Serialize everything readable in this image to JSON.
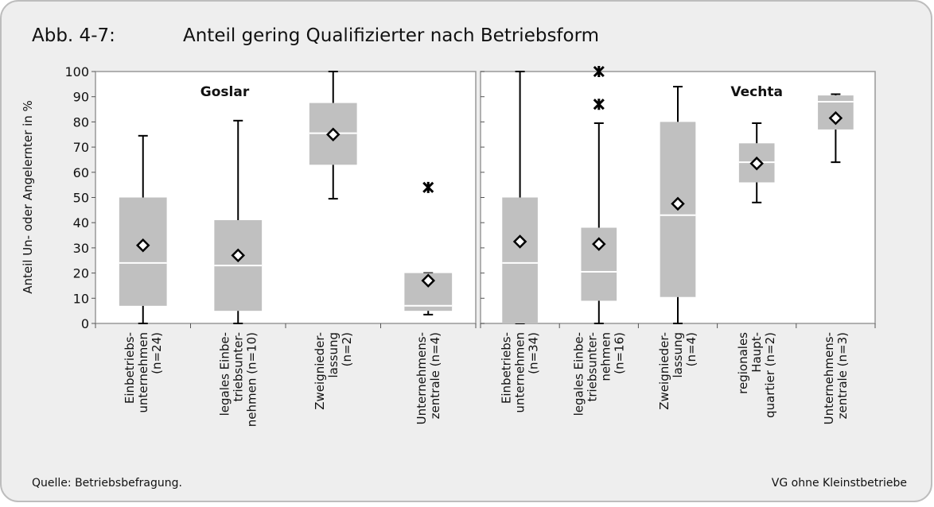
{
  "figure_label": "Abb. 4-7:",
  "title": "Anteil gering Qualifizierter nach Betriebsform",
  "source": "Quelle: Betriebsbefragung.",
  "note": "VG ohne Kleinstbetriebe",
  "chart_data": [
    {
      "type": "box",
      "title": "Goslar",
      "ylabel": "Anteil Un- oder Angelernter in %",
      "ylim": [
        0,
        100
      ],
      "yticks": [
        0,
        10,
        20,
        30,
        40,
        50,
        60,
        70,
        80,
        90,
        100
      ],
      "color": "#c0c0c0",
      "categories": [
        [
          "Einbetriebs-",
          "unternehmen",
          "(n=24)"
        ],
        [
          "legales Einbe-",
          "triebsunter-",
          "nehmen (n=10)"
        ],
        [
          "Zweignieder-",
          "lassung",
          "(n=2)"
        ],
        [
          "Unternehmens-",
          "zentrale (n=4)"
        ]
      ],
      "whisker_low": [
        0,
        0,
        49.5,
        3.5
      ],
      "q1": [
        7,
        5,
        63,
        5
      ],
      "median": [
        24,
        23,
        75.5,
        7
      ],
      "q3": [
        50,
        41,
        87.5,
        20
      ],
      "whisker_high": [
        74.5,
        80.5,
        100,
        20
      ],
      "mean": [
        31,
        27,
        75,
        17
      ],
      "outliers": [
        [],
        [],
        [],
        [
          54
        ]
      ]
    },
    {
      "type": "box",
      "title": "Vechta",
      "ylim": [
        0,
        100
      ],
      "yticks": [
        0,
        10,
        20,
        30,
        40,
        50,
        60,
        70,
        80,
        90,
        100
      ],
      "color": "#c0c0c0",
      "categories": [
        [
          "Einbetriebs-",
          "unternehmen",
          "(n=34)"
        ],
        [
          "legales Einbe-",
          "triebsunter-",
          "nehmen",
          "(n=16)"
        ],
        [
          "Zweignieder-",
          "lassung",
          "(n=4)"
        ],
        [
          "regionales",
          "Haupt-",
          "quartier (n=2)"
        ],
        [
          "Unternehmens-",
          "zentrale (n=3)"
        ]
      ],
      "whisker_low": [
        0,
        0,
        0,
        48,
        64
      ],
      "q1": [
        0,
        9,
        10.5,
        56,
        77
      ],
      "median": [
        24,
        20.5,
        43,
        64,
        88
      ],
      "q3": [
        50,
        38,
        80,
        71.5,
        90.5
      ],
      "whisker_high": [
        100,
        79.5,
        94,
        79.5,
        91
      ],
      "mean": [
        32.5,
        31.5,
        47.5,
        63.5,
        81.5
      ],
      "outliers": [
        [],
        [
          100,
          87
        ],
        [],
        [],
        []
      ]
    }
  ]
}
